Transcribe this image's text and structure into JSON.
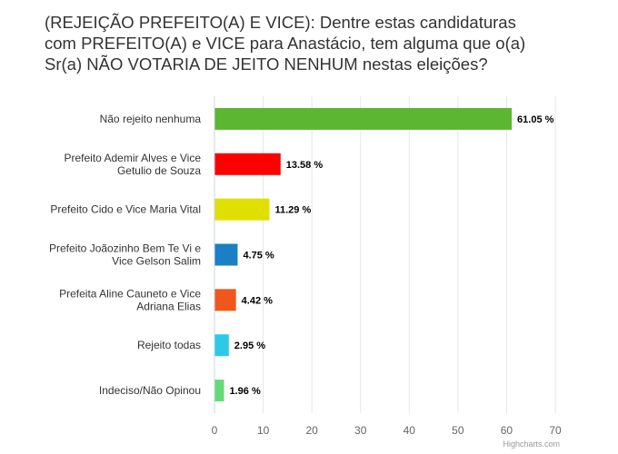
{
  "title_lines": [
    "(REJEIÇÃO PREFEITO(A) E VICE): Dentre estas candidaturas",
    "com PREFEITO(A) e VICE para Anastácio, tem alguma que o(a)",
    "Sr(a) NÃO VOTARIA DE JEITO NENHUM nestas eleições?"
  ],
  "credit": "Highcharts.com",
  "chart_data": {
    "type": "bar",
    "orientation": "horizontal",
    "title": "(REJEIÇÃO PREFEITO(A) E VICE): Dentre estas candidaturas com PREFEITO(A) e VICE para Anastácio, tem alguma que o(a) Sr(a) NÃO VOTARIA DE JEITO NENHUM nestas eleições?",
    "categories": [
      [
        "Não rejeito nenhuma"
      ],
      [
        "Prefeito Ademir Alves e Vice",
        "Getulio de Souza"
      ],
      [
        "Prefeito Cido e Vice Maria Vital"
      ],
      [
        "Prefeito Joãozinho Bem Te Vi e",
        "Vice Gelson Salim"
      ],
      [
        "Prefeita Aline Cauneto e Vice",
        "Adriana Elias"
      ],
      [
        "Rejeito todas"
      ],
      [
        "Indeciso/Não Opinou"
      ]
    ],
    "values": [
      61.05,
      13.58,
      11.29,
      4.75,
      4.42,
      2.95,
      1.96
    ],
    "data_labels": [
      "61.05 %",
      "13.58 %",
      "11.29 %",
      "4.75 %",
      "4.42 %",
      "2.95 %",
      "1.96 %"
    ],
    "colors": [
      "#5cb632",
      "#fe0000",
      "#e0e000",
      "#1a7fc4",
      "#f0571c",
      "#2ec9e6",
      "#66d977"
    ],
    "xlim": [
      0,
      70
    ],
    "ticks": [
      "0",
      "10",
      "20",
      "30",
      "40",
      "50",
      "60",
      "70"
    ],
    "grid": true
  }
}
